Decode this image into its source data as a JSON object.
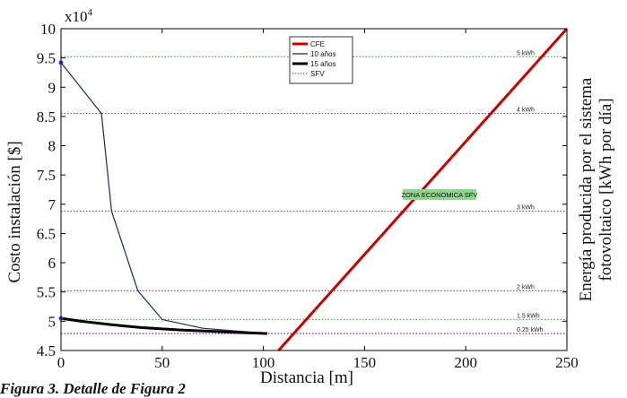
{
  "chart_data": {
    "type": "line",
    "x_label": "Distancia [m]",
    "y_label": "Costo instalación [$]",
    "y_right_label": "Energía producida por el sistema fotovoltaico [kWh por día]",
    "y_multiplier_label": "x10",
    "y_multiplier_exp": "4",
    "xlim": [
      0,
      250
    ],
    "ylim": [
      4.5,
      10
    ],
    "x_ticks": [
      "0",
      "50",
      "100",
      "150",
      "200",
      "250"
    ],
    "y_ticks": [
      "4.5",
      "5",
      "5.5",
      "6",
      "6.5",
      "7",
      "7.5",
      "8",
      "8.5",
      "9",
      "9.5",
      "10"
    ],
    "grid": false,
    "legend_position": "top-center",
    "series": [
      {
        "name": "CFE",
        "color": "#c00000",
        "style": "solid-thick",
        "x": [
          107.5,
          250
        ],
        "y": [
          4.5,
          10
        ]
      },
      {
        "name": "10 años",
        "color": "#1a2a5a",
        "style": "solid-thin",
        "x": [
          0,
          20,
          25,
          38,
          50,
          70,
          102
        ],
        "y": [
          9.42,
          8.55,
          6.88,
          5.52,
          5.03,
          4.88,
          4.79
        ]
      },
      {
        "name": "15 años",
        "color": "#000000",
        "style": "solid-thick",
        "x": [
          0,
          10,
          25,
          40,
          60,
          80,
          102
        ],
        "y": [
          5.05,
          5.0,
          4.94,
          4.89,
          4.85,
          4.82,
          4.79
        ]
      },
      {
        "name": "SFV",
        "color": "#6a2a8a",
        "style": "dotted",
        "x": [
          0,
          250
        ],
        "y": [
          4.79,
          4.79
        ]
      }
    ],
    "reference_lines": [
      {
        "label": "5 kWh",
        "y": 9.52,
        "color": "#22aa22"
      },
      {
        "label": "4 kWh",
        "y": 8.55,
        "color": "#6a2a8a"
      },
      {
        "label": "3 kWh",
        "y": 6.88,
        "color": "#6a2a8a"
      },
      {
        "label": "2 kWh",
        "y": 5.52,
        "color": "#6a2a8a"
      },
      {
        "label": "1.5 kWh",
        "y": 5.03,
        "color": "#22aa22"
      },
      {
        "label": "0.25 kWh",
        "y": 4.79,
        "color": "#6a2a8a"
      }
    ],
    "annotation": {
      "text": "ZONA ECONOMICA SFV",
      "x": 187,
      "y": 7.15,
      "background": "#8fd68f"
    }
  },
  "caption": "Figura 3. Detalle de Figura 2"
}
